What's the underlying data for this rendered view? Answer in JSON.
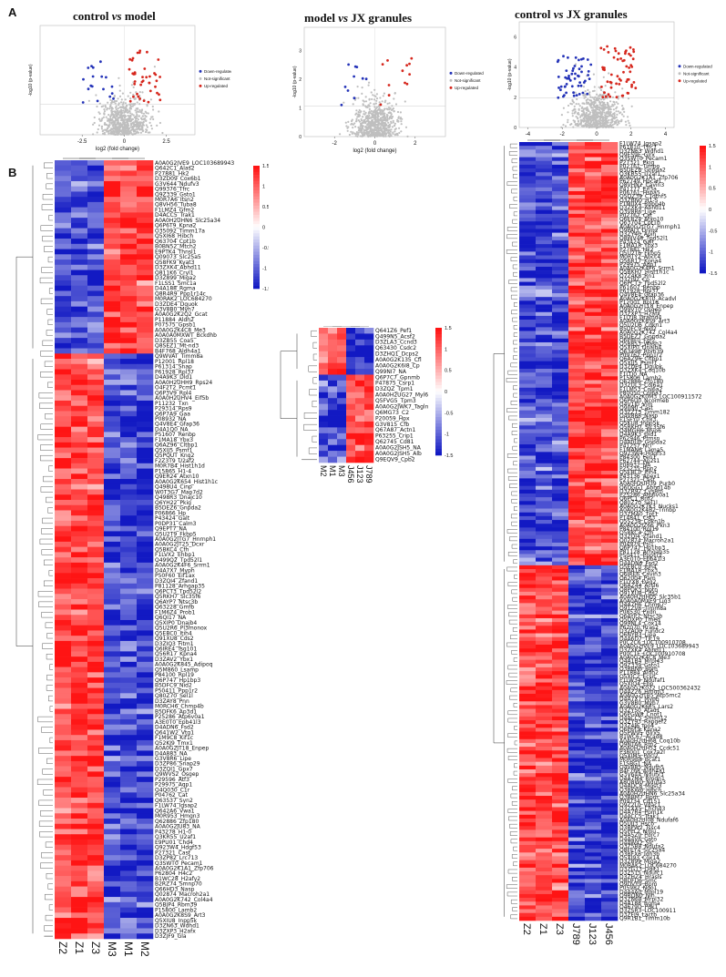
{
  "panels": {
    "a": "A",
    "b": "B"
  },
  "volcano_plots": [
    {
      "title_left": "control ",
      "title_vs": "vs",
      "title_right": " model",
      "xlabel": "log2 (fold change)",
      "ylabel": "-log10 (p-value)",
      "xticks": [
        "-2.5",
        "0",
        "2.5"
      ],
      "yticks": [],
      "legend": [
        "Down-regulated",
        "Not-significant",
        "Up-regulated"
      ]
    },
    {
      "title_left": "model ",
      "title_vs": "vs",
      "title_right": " JX granules",
      "xlabel": "log2 (fold change)",
      "ylabel": "-log10 (p-value)",
      "xticks": [
        "-2",
        "0",
        "2"
      ],
      "yticks": [
        "0",
        "1",
        "2",
        "3"
      ],
      "legend": [
        "Down-regulated",
        "Not-significant",
        "Up-regulated"
      ]
    },
    {
      "title_left": "control ",
      "title_vs": "vs",
      "title_right": " JX granules",
      "xlabel": "",
      "ylabel": "-log10 (p-value)",
      "xticks": [
        "-4",
        "-2",
        "0",
        "2",
        "4"
      ],
      "yticks": [
        "0",
        "2",
        "4",
        "6"
      ],
      "legend": [
        "Down-regulated",
        "Not-significant",
        "Up-regulated"
      ]
    }
  ],
  "heatmaps": [
    {
      "columns": [
        "Z2",
        "Z1",
        "Z3",
        "M3",
        "M1",
        "M2"
      ],
      "scale_ticks": [
        "1.5",
        "1",
        "0.5",
        "0",
        "-0.5",
        "-1",
        "-1.5"
      ],
      "rows": [
        "A0A0G2JVE9_LOC103689943",
        "Q642C1_Alas2",
        "P27881_Hk2",
        "D3ZD09_Cox6b1",
        "G3V644_Ndufv3",
        "Q99376_Tfrc",
        "Q9Z339_Gsto1",
        "M0R7A6_Itsn2",
        "Q8VH56_Tuba8",
        "F1LMZ4_Gfm2",
        "D4ACC5_Trak1",
        "A0A0H2UHN6_Slc25a34",
        "Q6P6T9_Kpna2",
        "O35092_Timm17a",
        "Q5XI68_Hibch",
        "Q63704_Cpt1b",
        "B0BN52_Mtch2",
        "E9PTK4_Thnsl1",
        "Q09073_Slc25a5",
        "Q58FK9_Kyat3",
        "D3ZXK4_Abhd11",
        "Q811K6_Cryl1",
        "D3Z899_Miga2",
        "F1LSS1_Smc1a",
        "D4A188_Rgma",
        "Q8R4R9_Ppp1r14c",
        "M0RAK2_LOC684270",
        "D3ZDE4_Dguok",
        "G3V8B0_Myh7",
        "A0A0G2K2Q2_Gcat",
        "P11884_Aldh2",
        "P07575_Gpsb1",
        "A0A0G2K4C8_Me3",
        "A0A0A0MXWT_Bckdhb",
        "D3ZB55_Coa5",
        "Q8SEZ1_Mt-nd3",
        "B4F768_Aldh4a1",
        "Q9WVAT_Timm8a",
        "P12001_Rpl18",
        "P61314_Snap",
        "P61928_Rpl37",
        "D4A9K3_Dld1",
        "A0A0H2UHH9_Rps24",
        "O4F2T2_Pcmt1",
        "Q6P3V9_Rpl4",
        "A0A0H2UHV4_Eif5b",
        "P11232_Txn",
        "P29314_Rps9",
        "Q6P7A9_Gaa",
        "P08932_NA",
        "Q4V8E4_Gfap36",
        "D4A1Q0_NA",
        "P51607_Renbp",
        "F1MA18_Ybx3",
        "Q6AZ96_Cltbp1",
        "Q5XIJ5_Psmf1",
        "Q5PQUT_Kng2",
        "F2Z3T9_U2af2",
        "M0R7B4_Hist1h1d",
        "P15865_H1-4",
        "Q9ER24_Atxn10",
        "A0A0G2K654_Hist1h1c",
        "Q498U4_Cinp",
        "W0T3G7_Map7d2",
        "Q498R3_Dnajc10",
        "Q6YH22_Pkig",
        "B5DEZ6_Gnpda2",
        "P06866_Hp",
        "P43424_Galt",
        "P0DP31_Calm3",
        "Q9EPT7_NA",
        "Q5U2T9_Fkbp5",
        "A0A0G2JTG7_Hnrnph1",
        "A0A0G2JT25_Dcxr",
        "Q5BKC4_Cfh",
        "F1LVX2_Ehbp1",
        "Q499Q2_Tpd52l1",
        "A0A0G2K4F6_Srrm1",
        "D4A7X7_Myph",
        "P50F60_Eif1ax",
        "D3ZQI4_Zfand1",
        "P81128_Arhgap35",
        "Q6PCT3_Tpd52l2",
        "Q5RKH7_Slc35f6",
        "Q6AYP7_Ntsc3b",
        "Q63228_Gmfb",
        "F1M6Z4_Prob1",
        "Q6QI17_NA",
        "Q5XIP0_Dnajb4",
        "Q5U2R6_Pl3monox",
        "Q5EBC0_Itih4",
        "Q91XU8_Cds2",
        "D3ZIQ3_Fitm1",
        "Q6IRE4_Tsg101",
        "Q56R17_Kpna4",
        "D3ZAV2_Ybx1",
        "A0A0G2K845_Adipoq",
        "Q5M860_Lsamp",
        "P84100_Rpl19",
        "Q6P747_Hp1bp3",
        "B5DFC9_Nid2",
        "P50411_Ppp1r2",
        "Q80Z70_Sel1l",
        "D3ZAY8_Pnn",
        "M0RCH6_Chmp4b",
        "B5DFK6_Ap3d1",
        "P25286_Atp6v0a1",
        "A3E0T0_Epb41l3",
        "D4ADN6_Fsd2",
        "Q641W2_Vtg1",
        "F1M9C8_Kif1c",
        "Q52KJ9_Tmx1",
        "A0A0G2JT18_Enpep",
        "D4A883_NA",
        "G3V8R6_Lipe",
        "D3ZP86_Snap29",
        "D3ZQI1_Gpx7",
        "Q9WVS2_Osgep",
        "P29596_Atf3",
        "P29975_Aqp1",
        "Q4Q030_C1r",
        "P04762_Cat",
        "Q63537_Syn2",
        "F1LW74_Igsap2",
        "Q642A6_Vwa1",
        "M0R953_Hmgn3",
        "Q62886_Zfp180",
        "A0A0G2JU83_NA",
        "P43278_H1-0",
        "Q3KR55_U2af1",
        "E9PU01_Chd4",
        "Q923W4_Hdgf53",
        "P27321_Cast",
        "D3ZP82_Lrc713",
        "Q3SWT0_Pecam1",
        "A0A0G2K1A1_Zfp706",
        "P62804_H4c2",
        "B1WC28_H2afy2",
        "B2RZ74_Smnp70",
        "Q66HD3_Nasp",
        "Q02874_Macroh2a1",
        "A0A0G2K742_Col4a4",
        "Q5BJP4_Rbm39",
        "P15800_Lamb2",
        "A0A0G2K8S9_Art3",
        "Q5XIU8_Inpp5k",
        "D3ZN63_Wdhd1",
        "D3ZXP3_H2afx",
        "D3ZJF9_Gla"
      ]
    },
    {
      "columns": [
        "M2",
        "M1",
        "M3",
        "J456",
        "J123",
        "J789"
      ],
      "scale_ticks": [
        "1.5",
        "1",
        "0.5",
        "0",
        "-0.5",
        "-1",
        "-1.5"
      ],
      "rows": [
        "Q641Z6_Pef1",
        "Q499N5_Acsf2",
        "D3ZLA3_Ccnd3",
        "Q63430_Csdc2",
        "D3ZHQ1_Dcps2",
        "A0A0G2K135_Cfl",
        "A0A0G2K6I8_Cp",
        "Q99NI7_NA",
        "Q6P7C7_Gpnmb",
        "P47875_Csrp1",
        "D3ZQZ_Tpm1",
        "A0A0H2UG27_Myl6",
        "Q5FVG5_Tpm3",
        "A0A0G2JWK7_Tagln",
        "Q6MG73_C2",
        "P20059_Hpx",
        "G3V815_Cfb",
        "Q67A87_Actn1",
        "P63255_Crip1",
        "Q62745_Cd81",
        "A0A0G2JSH5_NA",
        "A0A0G2JSH5_Alb",
        "Q9EQV9_Cpb2"
      ]
    },
    {
      "columns": [
        "Z2",
        "Z1",
        "Z3",
        "J789",
        "J123",
        "J456"
      ],
      "scale_ticks": [
        "1.5",
        "1",
        "0.5",
        "0",
        "-0.5",
        "-1",
        "-1.5"
      ],
      "rows": [
        "F1LW74_Igsap2",
        "P61810_Tfrc1",
        "D3ZN63_Wdhd1",
        "Q9ES9E_Glrx",
        "Q3SWT0_Pecam1",
        "P27321_Pkig",
        "P02761_Timpo",
        "B5DEZ6_Gnpda2",
        "Q3KR55_U2af1",
        "A0A0G2K1A1_Zfp706",
        "P62749_Hpcal1",
        "Q8VHN2_Cavin3",
        "P41777_Eif3a",
        "P06761_Hspa5",
        "Q5QZ39_C1qtnf5",
        "Q3ZBN0_H1-5",
        "F1M0X4_Rbbp4b",
        "D3ZXK4_Abhd11",
        "Q3V8R6_Lipe",
        "P02762_Cat",
        "Q6ER24_Atxn10",
        "Q63704_Cpt1b",
        "A0A0G2JTG7_Hnrnph1",
        "Q9PAJ3_Dnm2",
        "D3ZY40_Apih",
        "Q8WV48_Tpd52l1",
        "P43424_Galt",
        "F1MA18_Ybx3",
        "P27881_Hk2",
        "Q5U2T6_Fkbp5",
        "M0RTY2_Abcc4",
        "Q56R17_Kpna4",
        "P29975_Aqp1",
        "A0A0G2K4F6_Srrm1",
        "Q5RKH7_Hist1h1c",
        "Q7Z4K8_Rn1",
        "D3ZJ92_Cp",
        "Q6PCT3_Tpd52l2",
        "P61607_Renbp",
        "P61928_Rpl37",
        "Q4V8E4_Gfap36",
        "A0A0G2K8T0_Acadvl",
        "P12001_Rpl18",
        "A0A0G2JT18_Enpep",
        "Q99VT0_Osgep",
        "D3ZXP3_H2afx",
        "F1LYJ8_Gramd4",
        "A0A0G2K8S9_Art3",
        "Q5U2U6_Cdkn1",
        "B5DFC9_Nid2",
        "A0A0G2K742_Col4a4",
        "B5DEZ7_Gnpda2",
        "Q6P8F0_Fgf2",
        "Q58853_Wash2",
        "Q5XIP0_Dnajb4",
        "Q63496_Rbm39",
        "P09762_Ppp1r2",
        "Q6AZ96_Cltbp1",
        "Q5XIJ5_Psmf1",
        "D3ZDE4_Dguok",
        "D3ZXK4_Coq10b",
        "F1LTJ0_NA",
        "P15800_Lamb2",
        "Q62886_Zfp180",
        "D3ZUL3_Col6a1",
        "F1LM53_Col6a2",
        "P80050_Col6a3",
        "A0A0G2K0M3_LOC100911572",
        "Q6P6U0_Ncormeb",
        "G4V1J0_Vim",
        "Q9JIN0_Cast",
        "D3ZZT3_Timm182",
        "Q4V888_Nasp",
        "F1SFY0_Cbx3",
        "Q5KU8_Inpp5k",
        "Q5RKH7_Slc35f6",
        "Q4MGH6_Myo6",
        "D4A9K3_Dld1",
        "P62946_Ptmsn",
        "D4A0U0_Gnpda2",
        "P41257_Ncl",
        "F1MAN6_Lama5",
        "Q923W4_Hdgf53",
        "P84300_Fen1",
        "P62744_Ap2s1",
        "P08932_NA",
        "P25235_Rpn2",
        "Q5EBC0_Itih4",
        "P43136_Apex1",
        "P27321_Cast",
        "A0A0H2UH39_Purb0",
        "Q6DGG1_Abhd14b",
        "D3ZR92_Cys8m",
        "P25286_Atp6v0a1",
        "Q6PC1_Brd2",
        "Q80Z70_Sel1l",
        "A0A0G2K7K3_Nucks1",
        "A0A0G2K4B2_Tnnbp",
        "D3ZMA0_Tpt1",
        "P14841_Cst3",
        "Q5S238_Cdkn1b",
        "A0A0G2JZ66_Pkn3",
        "P84100_Rpl19",
        "Q5BKC4_Cfh",
        "D3ZQI4_Zfand1",
        "Q02874_Macroh2a1",
        "P04979_Psl1",
        "Q6P747_Hp1bp3",
        "P81128_Arhgap35",
        "P50411_Ppp1r2",
        "A3E0T0_Epb41l3",
        "D4ADN6_Fsd2",
        "Q5EBC0_Itih4",
        "F1MA18_Ybx3",
        "Q6IRE6_Cavin3",
        "Q62004_Pam",
        "F1LYX8_Dag2",
        "Q6AZ44_Acsl6",
        "Q8PQK5_Nptn",
        "Q91XU8_Cds2",
        "A0A0H2UH05_Slc35b1",
        "A0A0A0MXE9_Lig3",
        "D4A7H6_Chmp7",
        "Q91ZV6_Timm8a",
        "P08530_Pxdn",
        "Q6AYP7_Ntsc3b",
        "Q5QXP0_Tmed",
        "Q99NL4_Cox14",
        "P62070_Rras2",
        "D3ZAQ0_Fundc2",
        "Q6NYB3_Lipa",
        "D4A6D7_Tlc19",
        "P0C2C6_LOC100910708",
        "A0A0G2JVE9_LOC103689943",
        "D3ZXK4_Abhd11",
        "P00C1E_LOC100910708",
        "A0A0G2K4C8_Me3",
        "Q4A1B4_Mrpl43",
        "Q9Z339_Gsto1",
        "Q3BBN6_Bpm",
        "P11884_Aldh2",
        "Q5XIC2_Ecsit",
        "F1LW34_Ndufaf1",
        "Q5XIQ4_Ebp",
        "A0A0G2K022_LOC500362432",
        "D4AZ26_Hmgn3",
        "A0A0G2JTB5_Atp5mc2",
        "D4A7X7_Myph",
        "G3V8B0_Myh7",
        "A0A0G2K6E5_Lars2",
        "D3ZY50_Atad1",
        "Q6PGW8_Cnot1",
        "D4ACC5_Smim12",
        "Q3ZY93_Rapgef2",
        "D3Z4J6_Ipo4",
        "Q6P6T9_Kpna2",
        "Q5PW95_Glrx5",
        "B1WC67_Acad8",
        "A0A0H2UH68_Coq10b",
        "Q9NTA6_Rtn2",
        "A0A0H2UH53_Ccdc51",
        "P38001_Cox7a2l",
        "Q5XIM5_Pdcl2",
        "M0R9B8_Bcat1",
        "F1SBG1_NA",
        "Q4V885_Ndufb5",
        "B4F768_Aldh4a1",
        "G3V644_Ndufv3",
        "D4A7M4_Rmdn1",
        "A8Q8W0_Ndufa3",
        "D4ADC8_Mgst3",
        "Q3BKW6_Hibch",
        "A0A0H2UHN6_Slc25a34",
        "Q3BBM7_Bpm",
        "P09734_Cd151",
        "Q9Z2L0_Vdac1",
        "D3ZXX5_Chchd3",
        "D4A7R4_Ppm1k",
        "D4ACC5_Trak1",
        "A0A0H2UI08_Ndufaf6",
        "Q5UIJ3_Hscb",
        "D3BFW2_Tssc4",
        "Q5PPL2_Nmu",
        "D4A5Z0_Pdrc7",
        "D4A4V6_Gsto",
        "D4AW42_Slc",
        "Q3Z5B8_Ndufa2",
        "Q8FEY4_Slc25a4",
        "Q3BFX6_Idh3b",
        "Q5XI93_Cox14",
        "D3Z899_Miga2",
        "M0RAK2_LOC684270",
        "D3ZG13_Ddit1",
        "D3Z5T5_Ndufc1",
        "D3ZHZ4_Hrasls",
        "Q8DFD6_Smc",
        "Q9DVY9_Bpm",
        "P05982_Nqo1",
        "D4A4A0_Mrpl19",
        "Q9RQN0_Nln",
        "D3ZN68_Mrpl32",
        "D4A188_Rgma",
        "Q4679D_Pdk1",
        "D3ZSR3_LOC100911",
        "D3ZFJ9_Lactb",
        "Q9R1B1_Timm10b"
      ]
    }
  ]
}
